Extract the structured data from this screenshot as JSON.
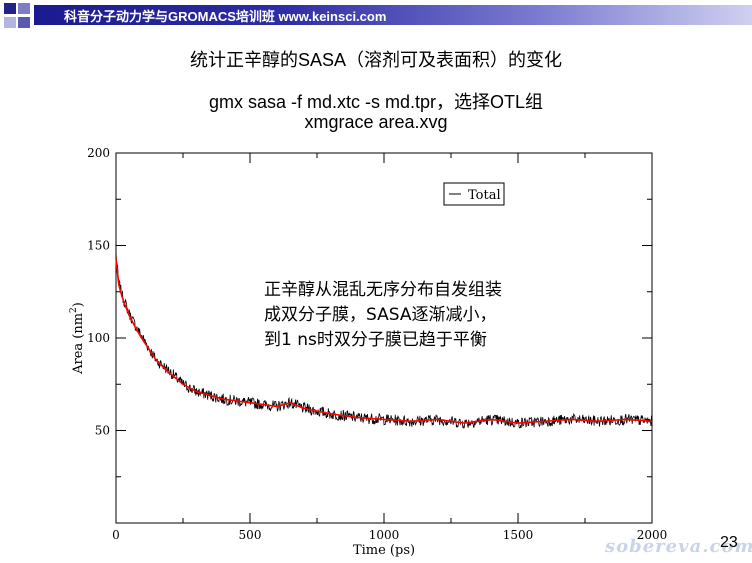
{
  "header": {
    "text": "科音分子动力学与GROMACS培训班 www.keinsci.com",
    "square_colors": [
      "#22228a",
      "#7d7dc8",
      "#b4b4e0",
      "#5a5ab0"
    ]
  },
  "slide": {
    "title": "统计正辛醇的SASA（溶剂可及表面积）的变化",
    "command1": "gmx sasa -f md.xtc -s md.tpr，选择OTL组",
    "command2": "xmgrace area.xvg",
    "annotation": [
      "正辛醇从混乱无序分布自发组装",
      "成双分子膜，SASA逐渐减小，",
      "到1 ns时双分子膜已趋于平衡"
    ],
    "page_number": "23",
    "watermark": "sobereva.com"
  },
  "chart_data": {
    "type": "line",
    "xlabel": "Time (ps)",
    "ylabel": "Area (nm2)",
    "xlim": [
      0,
      2000
    ],
    "ylim": [
      0,
      200
    ],
    "xticks": [
      "0",
      "500",
      "1000",
      "1500",
      "2000"
    ],
    "yticks": [
      "50",
      "100",
      "150",
      "200"
    ],
    "legend": {
      "position": "top-right",
      "entries": [
        "Total"
      ]
    },
    "series": [
      {
        "name": "Total",
        "color": "#000000",
        "x": [
          0,
          10,
          25,
          50,
          75,
          100,
          150,
          200,
          250,
          300,
          400,
          500,
          600,
          650,
          700,
          800,
          900,
          1000,
          1100,
          1200,
          1300,
          1400,
          1500,
          1600,
          1700,
          1800,
          1900,
          2000
        ],
        "values": [
          146,
          130,
          122,
          113,
          106,
          100,
          88,
          82,
          75,
          71,
          67,
          65,
          63,
          65,
          62,
          59,
          57,
          56,
          55,
          56,
          54,
          56,
          54,
          55,
          56,
          55,
          56,
          55
        ]
      },
      {
        "name": "",
        "color": "#ff0000",
        "x": [
          0,
          10,
          25,
          50,
          75,
          100,
          150,
          200,
          250,
          300,
          400,
          500,
          600,
          650,
          700,
          800,
          900,
          1000,
          1100,
          1200,
          1300,
          1400,
          1500,
          1600,
          1700,
          1800,
          1900,
          2000
        ],
        "values": [
          143,
          129,
          121,
          112,
          105,
          99,
          88,
          81,
          75,
          71,
          67,
          65,
          63,
          65,
          62,
          59,
          57,
          56,
          55,
          56,
          54,
          56,
          54,
          55,
          56,
          55,
          56,
          55
        ]
      }
    ]
  }
}
